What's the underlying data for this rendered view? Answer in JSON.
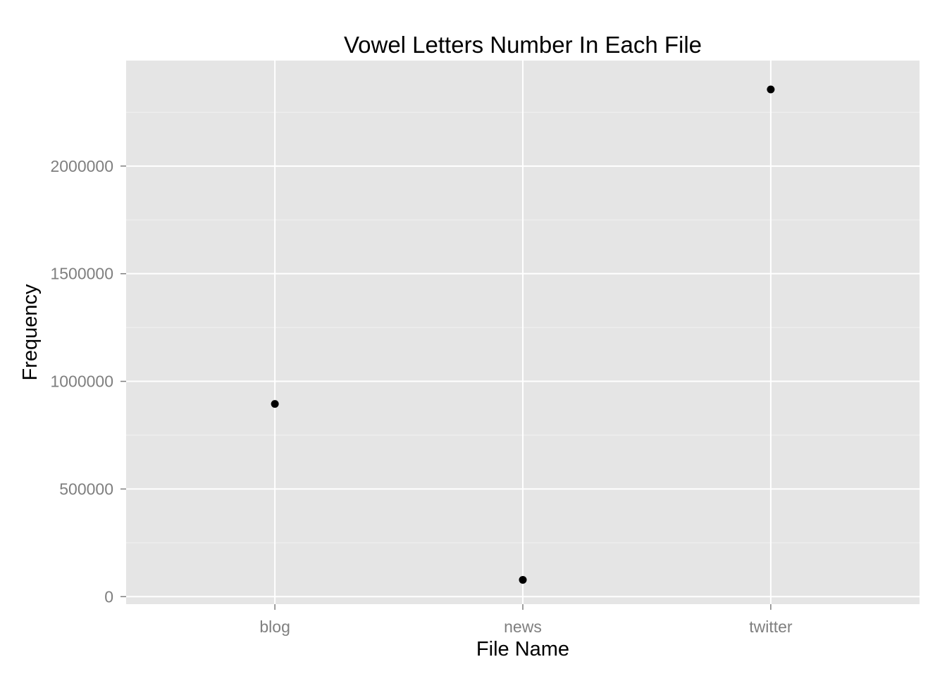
{
  "chart_data": {
    "type": "scatter",
    "title": "Vowel Letters Number In Each File",
    "xlabel": "File Name",
    "ylabel": "Frequency",
    "categories": [
      "blog",
      "news",
      "twitter"
    ],
    "values": [
      895000,
      78000,
      2356000
    ],
    "ylim": [
      -35000,
      2490000
    ],
    "yticks": [
      0,
      500000,
      1000000,
      1500000,
      2000000
    ],
    "ytick_labels": [
      "0",
      "500000",
      "1000000",
      "1500000",
      "2000000"
    ],
    "grid": true,
    "legend": "none",
    "colors": {
      "panel_background": "#e5e5e5",
      "grid_major": "#ffffff",
      "grid_minor": "#f2f2f2",
      "point": "#000000",
      "tick_label": "#7f7f7f"
    }
  }
}
